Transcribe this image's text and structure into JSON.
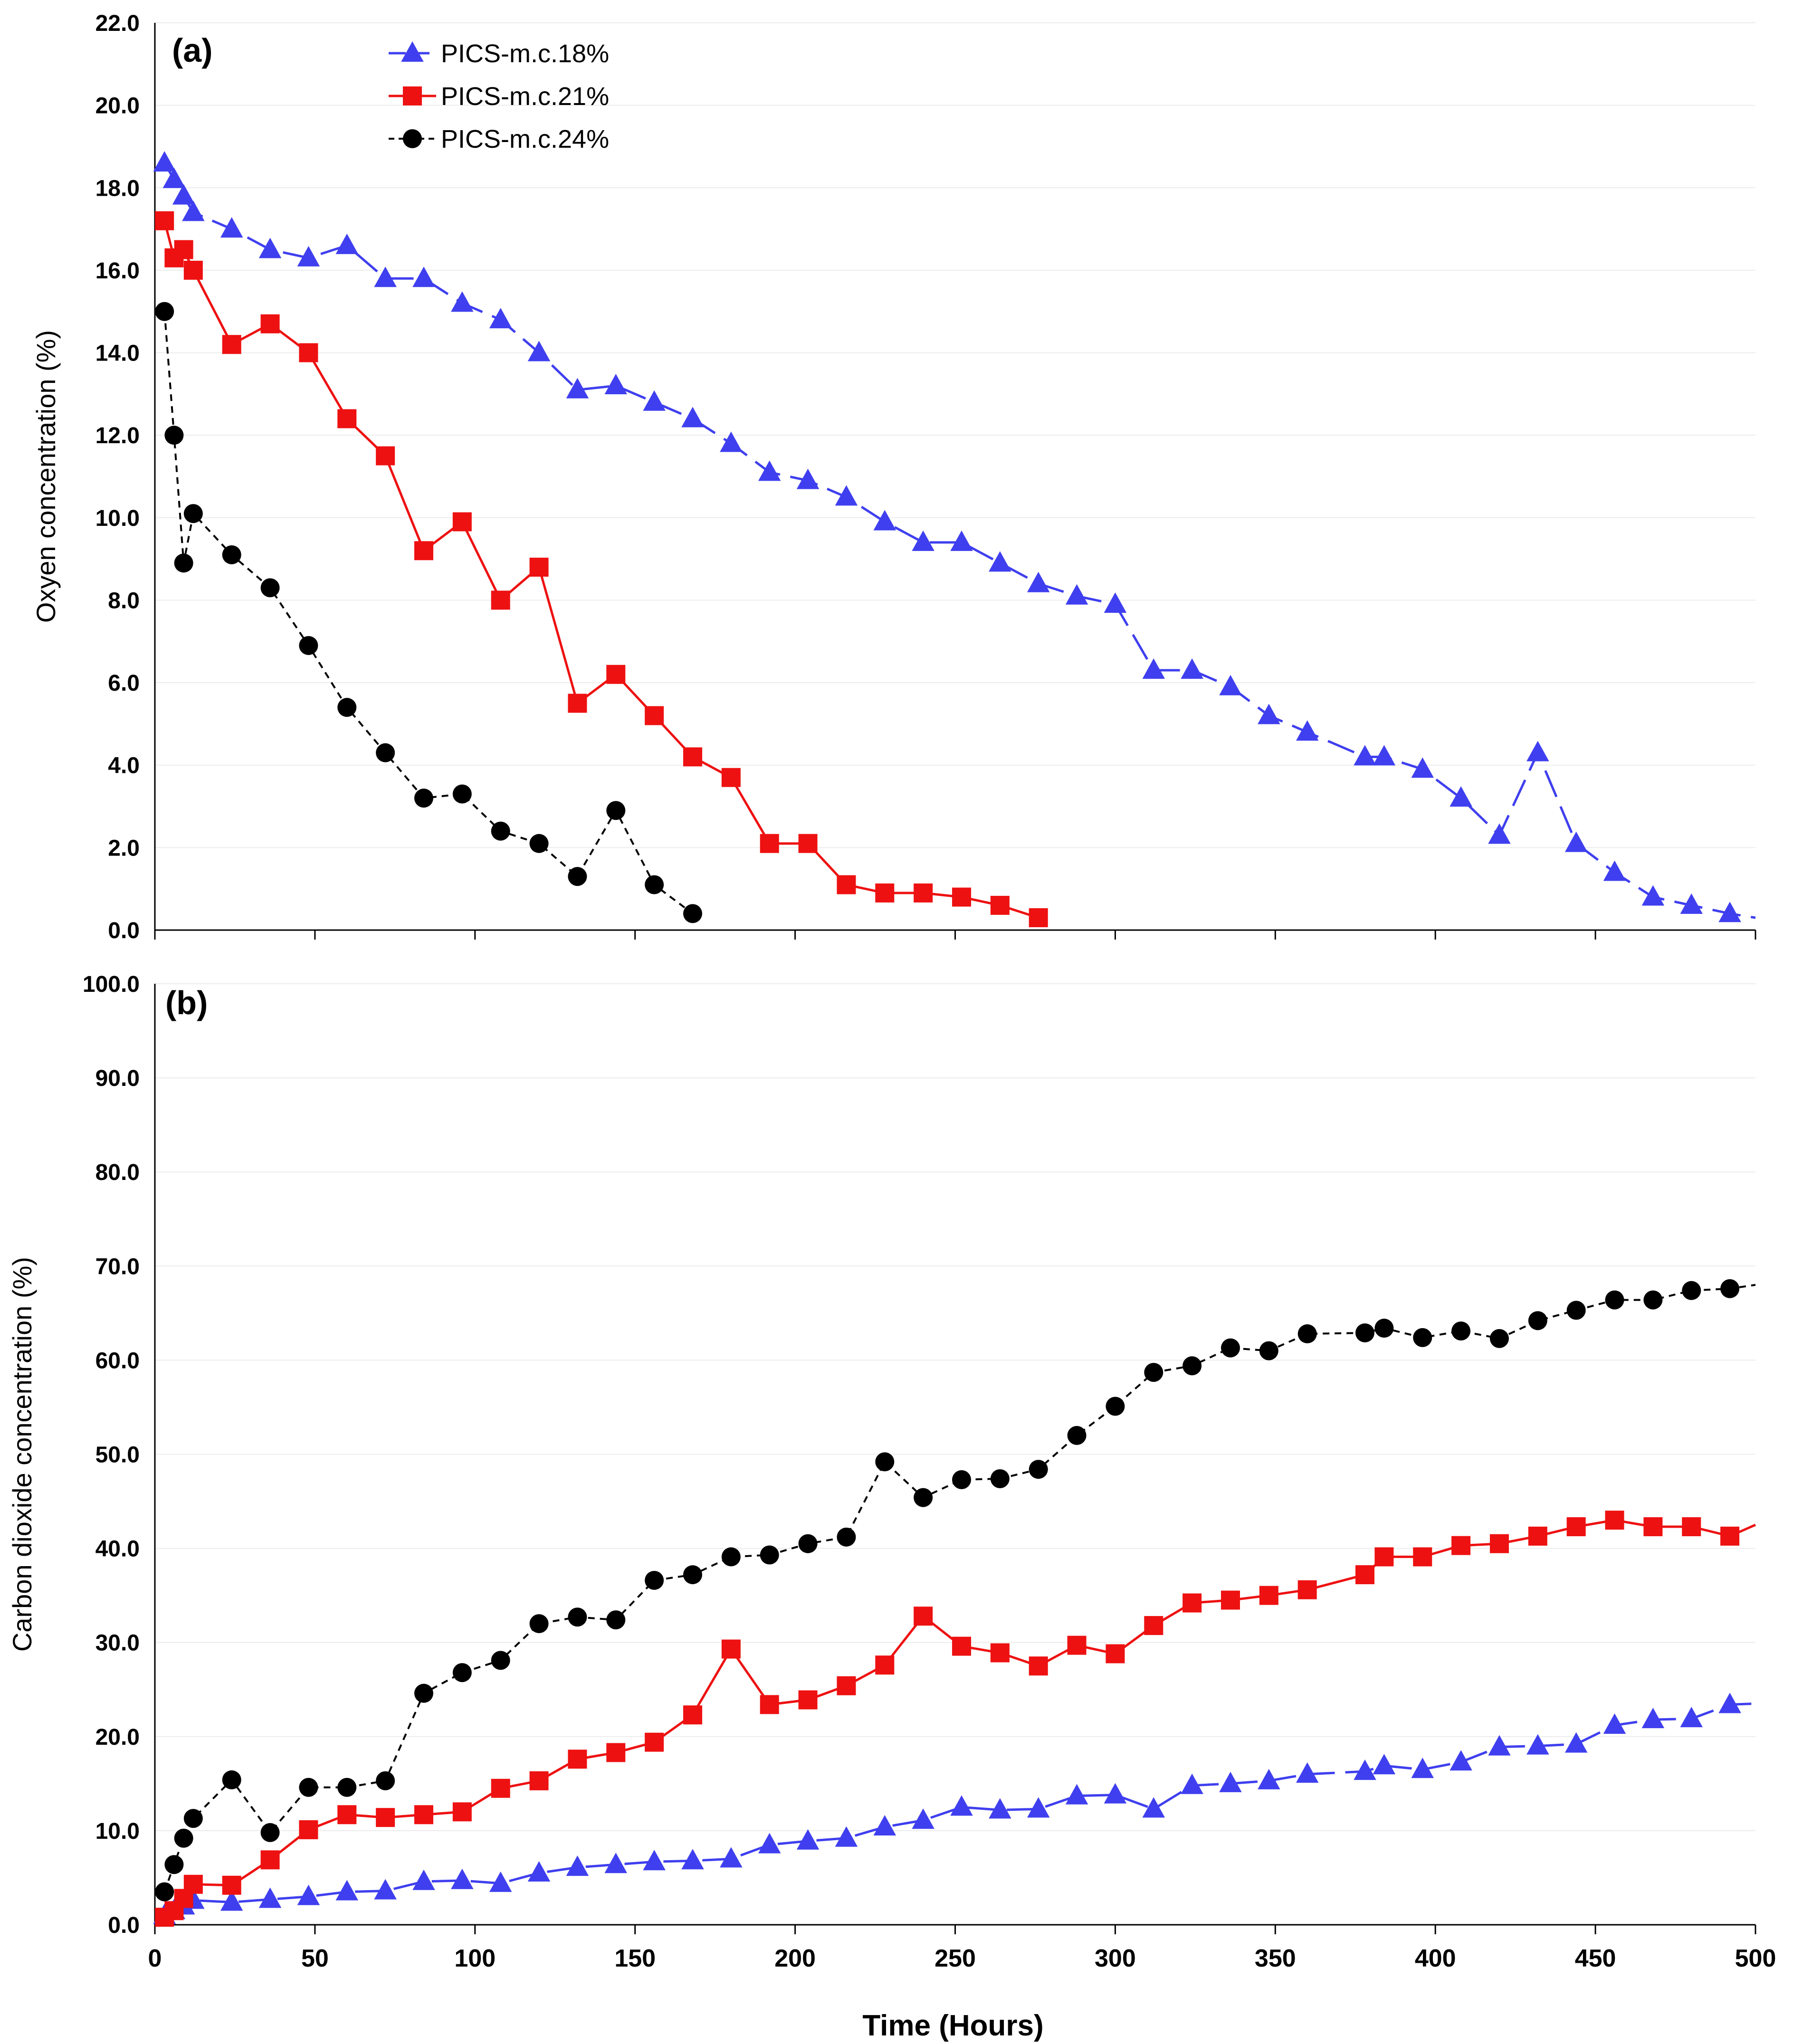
{
  "figure": {
    "xlabel": "Time (Hours)",
    "xticks": [
      "0",
      "50",
      "100",
      "150",
      "200",
      "250",
      "300",
      "350",
      "400",
      "450",
      "500"
    ]
  },
  "series_styles": [
    {
      "name": "PICS-m.c.18%",
      "color": "#3f3fef",
      "marker": "triangle",
      "line": "dashed-long"
    },
    {
      "name": "PICS-m.c.21%",
      "color": "#ee1111",
      "marker": "square",
      "line": "solid"
    },
    {
      "name": "PICS-m.c.24%",
      "color": "#000000",
      "marker": "circle",
      "line": "dashed-short"
    }
  ],
  "chart_data": [
    {
      "type": "line",
      "panel_label": "(a)",
      "title": "",
      "xlabel": "Time (Hours)",
      "ylabel": "Oxyen concentration (%)",
      "xlim": [
        0,
        500
      ],
      "ylim": [
        0,
        22
      ],
      "yticks": [
        "0.0",
        "2.0",
        "4.0",
        "6.0",
        "8.0",
        "10.0",
        "12.0",
        "14.0",
        "16.0",
        "18.0",
        "20.0",
        "22.0"
      ],
      "grid": true,
      "legend": {
        "location": "top-left",
        "entries": [
          "PICS-m.c.18%",
          "PICS-m.c.21%",
          "PICS-m.c.24%"
        ]
      },
      "series": [
        {
          "name": "PICS-m.c.18%",
          "x": [
            3,
            6,
            9,
            12,
            24,
            36,
            48,
            60,
            72,
            84,
            96,
            108,
            120,
            132,
            144,
            156,
            168,
            180,
            192,
            204,
            216,
            228,
            240,
            252,
            264,
            276,
            288,
            300,
            312,
            324,
            336,
            348,
            360,
            378,
            384,
            396,
            408,
            420,
            432,
            444,
            456,
            468,
            480,
            492,
            500
          ],
          "y": [
            18.6,
            18.2,
            17.8,
            17.4,
            17.0,
            16.5,
            16.3,
            16.6,
            15.8,
            15.8,
            15.2,
            14.8,
            14.0,
            13.1,
            13.2,
            12.8,
            12.4,
            11.8,
            11.1,
            10.9,
            10.5,
            9.9,
            9.4,
            9.4,
            8.9,
            8.4,
            8.1,
            7.9,
            6.3,
            6.3,
            5.9,
            5.2,
            4.8,
            4.2,
            4.2,
            3.9,
            3.2,
            2.3,
            4.3,
            2.1,
            1.4,
            0.8,
            0.6,
            0.4,
            0.3
          ]
        },
        {
          "name": "PICS-m.c.21%",
          "x": [
            3,
            6,
            9,
            12,
            24,
            36,
            48,
            60,
            72,
            84,
            96,
            108,
            120,
            132,
            144,
            156,
            168,
            180,
            192,
            204,
            216,
            228,
            240,
            252,
            264,
            276
          ],
          "y": [
            17.2,
            16.3,
            16.5,
            16.0,
            14.2,
            14.7,
            14.0,
            12.4,
            11.5,
            9.2,
            9.9,
            8.0,
            8.8,
            5.5,
            6.2,
            5.2,
            4.2,
            3.7,
            2.1,
            2.1,
            1.1,
            0.9,
            0.9,
            0.8,
            0.6,
            0.3
          ]
        },
        {
          "name": "PICS-m.c.24%",
          "x": [
            3,
            6,
            9,
            12,
            24,
            36,
            48,
            60,
            72,
            84,
            96,
            108,
            120,
            132,
            144,
            156,
            168
          ],
          "y": [
            15.0,
            12.0,
            8.9,
            10.1,
            9.1,
            8.3,
            6.9,
            5.4,
            4.3,
            3.2,
            3.3,
            2.4,
            2.1,
            1.3,
            2.9,
            1.1,
            0.4
          ]
        }
      ]
    },
    {
      "type": "line",
      "panel_label": "(b)",
      "title": "",
      "xlabel": "Time (Hours)",
      "ylabel": "Carbon dioxide concentration (%)",
      "xlim": [
        0,
        500
      ],
      "ylim": [
        0,
        100
      ],
      "yticks": [
        "0.0",
        "10.0",
        "20.0",
        "30.0",
        "40.0",
        "50.0",
        "60.0",
        "70.0",
        "80.0",
        "90.0",
        "100.0"
      ],
      "xticks": [
        "0",
        "50",
        "100",
        "150",
        "200",
        "250",
        "300",
        "350",
        "400",
        "450",
        "500"
      ],
      "grid": true,
      "series": [
        {
          "name": "PICS-m.c.18%",
          "x": [
            3,
            6,
            9,
            12,
            24,
            36,
            48,
            60,
            72,
            84,
            96,
            108,
            120,
            132,
            144,
            156,
            168,
            180,
            192,
            204,
            216,
            228,
            240,
            252,
            264,
            276,
            288,
            300,
            312,
            324,
            336,
            348,
            360,
            378,
            384,
            396,
            408,
            420,
            432,
            444,
            456,
            468,
            480,
            492,
            500
          ],
          "y": [
            1.0,
            1.5,
            2.0,
            2.6,
            2.4,
            2.7,
            3.0,
            3.5,
            3.6,
            4.6,
            4.7,
            4.4,
            5.5,
            6.1,
            6.4,
            6.7,
            6.8,
            7.0,
            8.5,
            8.9,
            9.2,
            10.4,
            11.1,
            12.5,
            12.2,
            12.3,
            13.7,
            13.8,
            12.3,
            14.8,
            15.0,
            15.3,
            16.0,
            16.3,
            16.9,
            16.5,
            17.3,
            18.9,
            19.0,
            19.2,
            21.2,
            21.8,
            21.9,
            23.4,
            23.5
          ]
        },
        {
          "name": "PICS-m.c.21%",
          "x": [
            3,
            6,
            9,
            12,
            24,
            36,
            48,
            60,
            72,
            84,
            96,
            108,
            120,
            132,
            144,
            156,
            168,
            180,
            192,
            204,
            216,
            228,
            240,
            252,
            264,
            276,
            288,
            300,
            312,
            324,
            336,
            348,
            360,
            378,
            384,
            396,
            408,
            420,
            432,
            444,
            456,
            468,
            480,
            492,
            500
          ],
          "y": [
            0.8,
            1.5,
            2.8,
            4.3,
            4.2,
            6.9,
            10.1,
            11.7,
            11.4,
            11.7,
            12.0,
            14.5,
            15.3,
            17.6,
            18.3,
            19.4,
            22.3,
            29.3,
            23.4,
            23.9,
            25.4,
            27.6,
            32.8,
            29.6,
            28.9,
            27.5,
            29.7,
            28.8,
            31.8,
            34.2,
            34.5,
            35.0,
            35.6,
            37.2,
            39.1,
            39.1,
            40.3,
            40.5,
            41.3,
            42.3,
            43.0,
            42.3,
            42.3,
            41.3,
            42.5
          ]
        },
        {
          "name": "PICS-m.c.24%",
          "x": [
            3,
            6,
            9,
            12,
            24,
            36,
            48,
            60,
            72,
            84,
            96,
            108,
            120,
            132,
            144,
            156,
            168,
            180,
            192,
            204,
            216,
            228,
            240,
            252,
            264,
            276,
            288,
            300,
            312,
            324,
            336,
            348,
            360,
            378,
            384,
            396,
            408,
            420,
            432,
            444,
            456,
            468,
            480,
            492,
            500
          ],
          "y": [
            3.5,
            6.4,
            9.2,
            11.3,
            15.4,
            9.8,
            14.6,
            14.6,
            15.3,
            24.6,
            26.8,
            28.1,
            32.0,
            32.7,
            32.4,
            36.6,
            37.2,
            39.1,
            39.3,
            40.5,
            41.2,
            49.2,
            45.4,
            47.3,
            47.4,
            48.4,
            52.0,
            55.1,
            58.7,
            59.4,
            61.3,
            61.0,
            62.8,
            62.9,
            63.4,
            62.4,
            63.1,
            62.3,
            64.2,
            65.3,
            66.4,
            66.4,
            67.4,
            67.6,
            68.0
          ]
        }
      ]
    }
  ]
}
